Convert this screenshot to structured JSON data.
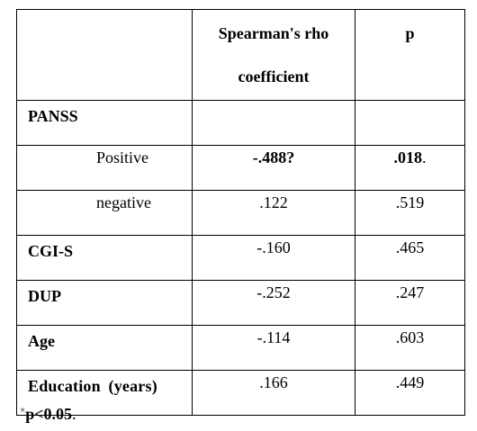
{
  "table": {
    "header": {
      "col1": "",
      "col2_line1": "Spearman's rho",
      "col2_line2": "coefficient",
      "col3": "p"
    },
    "rows": [
      {
        "label": "PANSS",
        "rho": "",
        "p": "",
        "kind": "group"
      },
      {
        "label": "Positive",
        "rho": "-.488?",
        "p": ".018",
        "p_suffix": ".",
        "kind": "sub"
      },
      {
        "label": "negative",
        "rho": ".122",
        "p": ".519",
        "kind": "sub"
      },
      {
        "label": "CGI-S",
        "rho": "-.160",
        "p": ".465",
        "kind": "main"
      },
      {
        "label": "DUP",
        "rho": "-.252",
        "p": ".247",
        "kind": "main"
      },
      {
        "label": "Age",
        "rho": "-.114",
        "p": ".603",
        "kind": "main"
      },
      {
        "label": "Education (years)",
        "rho": ".166",
        "p": ".449",
        "kind": "main"
      }
    ]
  },
  "footnote": {
    "mark": "×",
    "text": "p<0.05",
    "suffix": "."
  }
}
